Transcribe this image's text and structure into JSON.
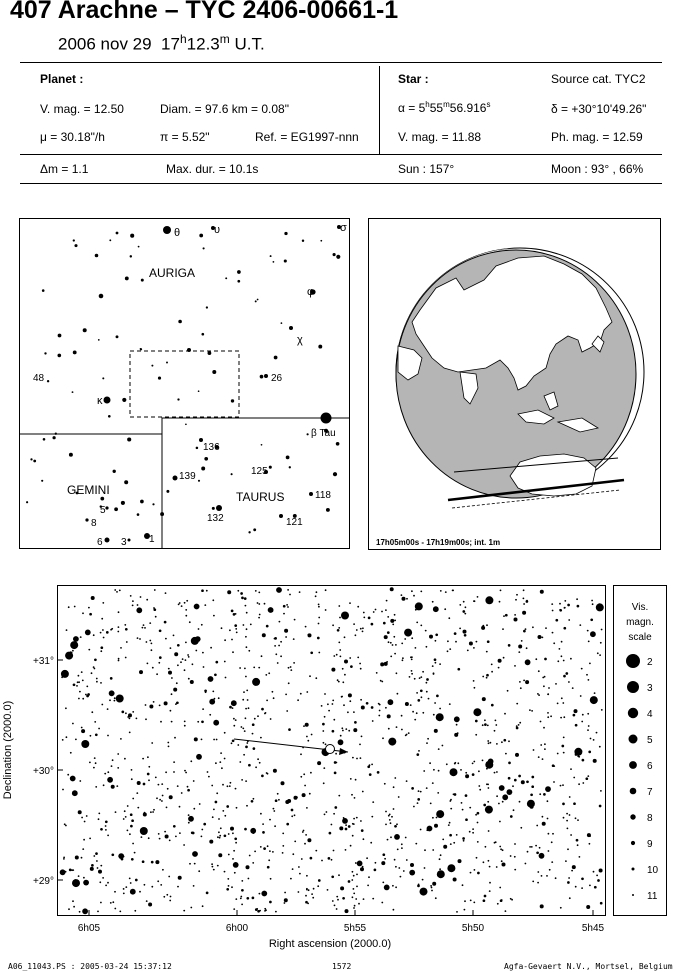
{
  "header": {
    "title": "407 Arachne  –  TYC 2406-00661-1",
    "date": "2006 nov 29",
    "time_h": "17",
    "time_h_sup": "h",
    "time_m": "12.3",
    "time_m_sup": "m",
    "time_suffix": "U.T."
  },
  "planet": {
    "heading": "Planet :",
    "vmag": "V. mag. = 12.50",
    "diam": "Diam. = 97.6 km = 0.08\"",
    "mu": "μ =  30.18\"/h",
    "pi": "π =  5.52\"",
    "ref": "Ref. = EG1997-nnn"
  },
  "star": {
    "heading": "Star :",
    "source": "Source cat.  TYC2",
    "alpha_pre": "α = 5",
    "alpha_h": "h",
    "alpha_mid": "55",
    "alpha_m": "m",
    "alpha_sec": "56.916",
    "alpha_s": "s",
    "delta": "δ = +30°10'49.26\"",
    "vmag": "V. mag. = 11.88",
    "phmag": "Ph. mag. = 12.59"
  },
  "summary": {
    "dm": "Δm = 1.1",
    "maxdur": "Max. dur. = 10.1s",
    "sun": "Sun : 157°",
    "moon": "Moon :  93° , 66%"
  },
  "finder": {
    "constellations": [
      "AURIGA",
      "GEMINI",
      "TAURUS"
    ],
    "labels": [
      "θ",
      "υ",
      "σ",
      "φ",
      "χ",
      "48",
      "κ",
      "26",
      "β Tau",
      "136",
      "139",
      "125",
      "118",
      "132",
      "121",
      "5",
      "8",
      "6",
      "3",
      "1"
    ]
  },
  "globe": {
    "caption": "17h05m00s - 17h19m00s; int.  1m"
  },
  "chart_data": {
    "type": "scatter",
    "xlabel": "Right ascension (2000.0)",
    "ylabel": "Declination (2000.0)",
    "xticks": [
      "6h05",
      "6h00",
      "5h55",
      "5h50",
      "5h45"
    ],
    "yticks": [
      "+31°",
      "+30°",
      "+29°"
    ],
    "scale": {
      "title": [
        "Vis.",
        "magn.",
        "scale"
      ],
      "mags": [
        "2",
        "3",
        "4",
        "5",
        "6",
        "7",
        "8",
        "9",
        "10",
        "11"
      ]
    }
  },
  "footer": {
    "file": "A06_11043.PS : 2005-03-24 15:37:12",
    "page": "1572",
    "org": "Agfa-Gevaert N.V., Mortsel, Belgium"
  }
}
